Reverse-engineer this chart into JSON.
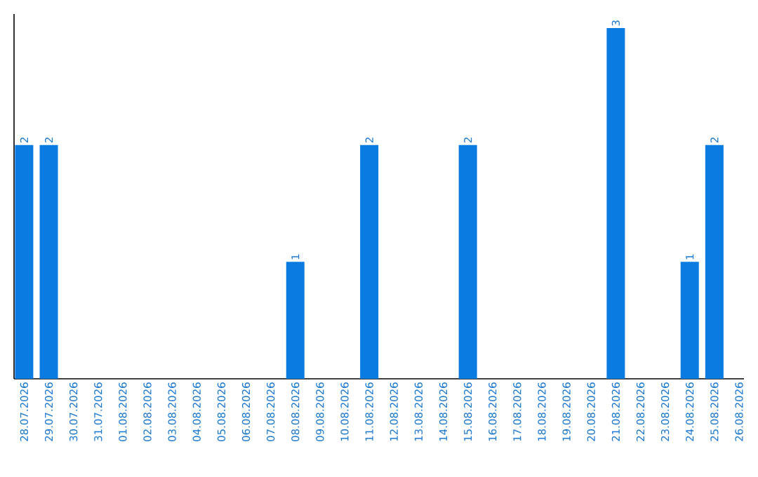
{
  "chart_data": {
    "type": "bar",
    "categories": [
      "28.07.2026",
      "29.07.2026",
      "30.07.2026",
      "31.07.2026",
      "01.08.2026",
      "02.08.2026",
      "03.08.2026",
      "04.08.2026",
      "05.08.2026",
      "06.08.2026",
      "07.08.2026",
      "08.08.2026",
      "09.08.2026",
      "10.08.2026",
      "11.08.2026",
      "12.08.2026",
      "13.08.2026",
      "14.08.2026",
      "15.08.2026",
      "16.08.2026",
      "17.08.2026",
      "18.08.2026",
      "19.08.2026",
      "20.08.2026",
      "21.08.2026",
      "22.08.2026",
      "23.08.2026",
      "24.08.2026",
      "25.08.2026",
      "26.08.2026"
    ],
    "values": [
      2,
      2,
      0,
      0,
      0,
      0,
      0,
      0,
      0,
      0,
      0,
      1,
      0,
      0,
      2,
      0,
      0,
      0,
      2,
      0,
      0,
      0,
      0,
      0,
      3,
      0,
      0,
      1,
      2,
      0
    ],
    "value_labels": [
      "2",
      "2",
      null,
      null,
      null,
      null,
      null,
      null,
      null,
      null,
      null,
      "1",
      null,
      null,
      "2",
      null,
      null,
      null,
      "2",
      null,
      null,
      null,
      null,
      null,
      "3",
      null,
      null,
      "1",
      "2",
      null
    ],
    "color": "#0a7be0",
    "ylim": [
      0,
      3.12
    ],
    "grid": false,
    "tick_labels": "x"
  }
}
